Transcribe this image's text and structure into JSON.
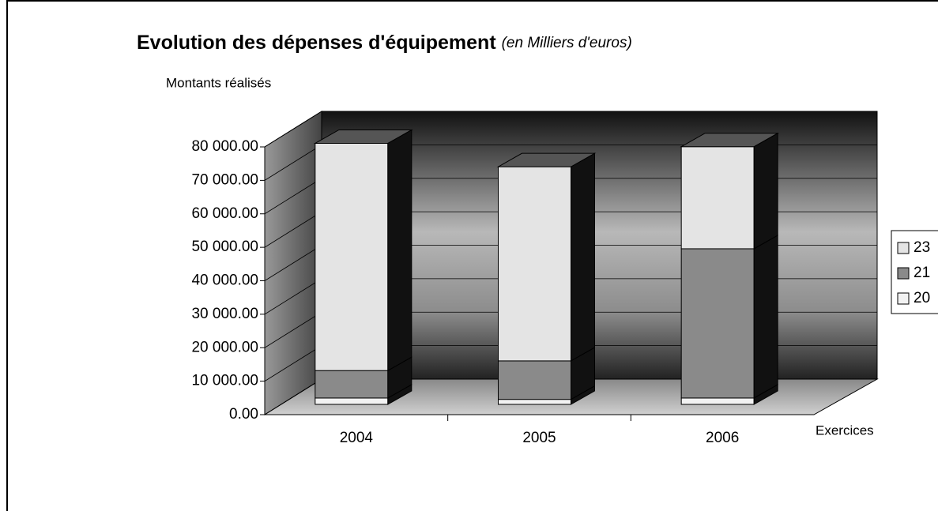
{
  "chart_data": {
    "type": "bar3d_stacked",
    "title": "Evolution des dépenses d'équipement",
    "subtitle": "(en Milliers d'euros)",
    "y_label": "Montants réalisés",
    "x_label": "Exercices",
    "categories": [
      "2004",
      "2005",
      "2006"
    ],
    "series": [
      {
        "name": "20",
        "color": "#f2f2f2",
        "values": [
          1900,
          1500,
          1900
        ]
      },
      {
        "name": "21",
        "color": "#8a8a8a",
        "values": [
          8200,
          11500,
          44600
        ]
      },
      {
        "name": "23",
        "color": "#e4e4e4",
        "values": [
          67900,
          58000,
          30500
        ]
      }
    ],
    "ylim": [
      0,
      80000
    ],
    "yticks": [
      {
        "value": 0,
        "label": "0.00"
      },
      {
        "value": 10000,
        "label": "10 000.00"
      },
      {
        "value": 20000,
        "label": "20 000.00"
      },
      {
        "value": 30000,
        "label": "30 000.00"
      },
      {
        "value": 40000,
        "label": "40 000.00"
      },
      {
        "value": 50000,
        "label": "50 000.00"
      },
      {
        "value": 60000,
        "label": "60 000.00"
      },
      {
        "value": 70000,
        "label": "70 000.00"
      },
      {
        "value": 80000,
        "label": "80 000.00"
      }
    ],
    "grid": true,
    "legend": "right",
    "legend_order": "reversed"
  }
}
